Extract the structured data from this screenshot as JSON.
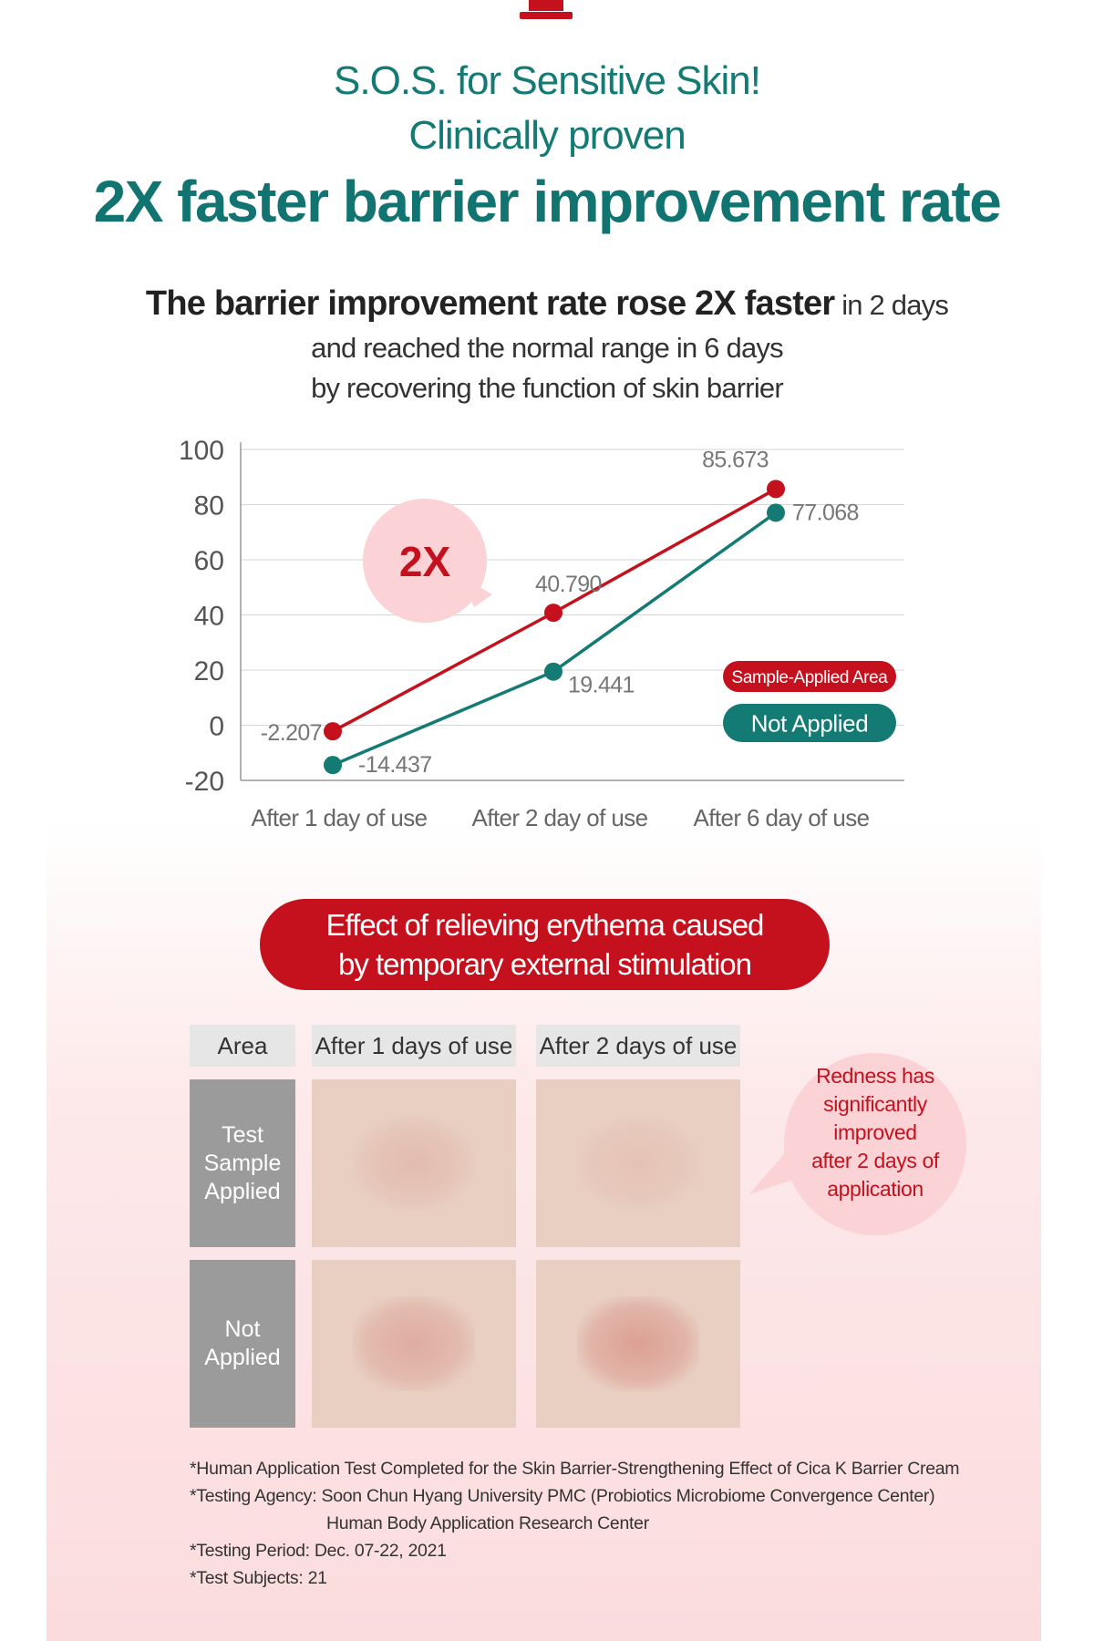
{
  "header": {
    "line1": "S.O.S. for Sensitive Skin!",
    "line2": "Clinically proven",
    "line3": "2X faster barrier improvement rate"
  },
  "subtitle": {
    "bold": "The barrier improvement rate rose 2X faster",
    "rest": " in 2 days",
    "line2": "and reached the normal range in 6 days",
    "line3": "by recovering the function of skin barrier"
  },
  "colors": {
    "teal": "#147a74",
    "red": "#c4111d",
    "pink_bubble": "#fbd3d6",
    "gray_label": "#9b9b9b"
  },
  "chart_data": {
    "type": "line",
    "categories": [
      "After 1 day of use",
      "After 2 day of use",
      "After 6 day of use"
    ],
    "series": [
      {
        "name": "Sample-Applied Area",
        "values": [
          -2.207,
          40.79,
          85.673
        ],
        "labels": [
          "-2.207",
          "40.790",
          "85.673"
        ],
        "color": "#c4111d"
      },
      {
        "name": "Not Applied",
        "values": [
          -14.437,
          19.441,
          77.068
        ],
        "labels": [
          "-14.437",
          "19.441",
          "77.068"
        ],
        "color": "#147a74"
      }
    ],
    "ylim": [
      -20,
      100
    ],
    "yticks": [
      "100",
      "80",
      "60",
      "40",
      "20",
      "0",
      "-20"
    ],
    "ytick_values": [
      100,
      80,
      60,
      40,
      20,
      0,
      -20
    ],
    "grid": true,
    "annotation": "2X",
    "legend": "right"
  },
  "erythema": {
    "line1": "Effect of relieving erythema caused",
    "line2": "by temporary external stimulation"
  },
  "table": {
    "headers": [
      "Area",
      "After 1 days of use",
      "After 2 days of use"
    ],
    "rows": [
      {
        "label_lines": [
          "Test",
          "Sample",
          "Applied"
        ]
      },
      {
        "label_lines": [
          "Not",
          "Applied"
        ]
      }
    ]
  },
  "callout": {
    "lines": [
      "Redness has",
      "significantly",
      "improved",
      "after 2 days of",
      "application"
    ]
  },
  "notes": {
    "n1": "*Human Application Test Completed for the Skin Barrier-Strengthening Effect of Cica K Barrier Cream",
    "n2": "*Testing Agency: Soon Chun Hyang University PMC (Probiotics Microbiome Convergence Center)",
    "n2b": "Human Body Application Research Center",
    "n3": "*Testing Period: Dec. 07-22, 2021",
    "n4": "*Test Subjects: 21"
  }
}
